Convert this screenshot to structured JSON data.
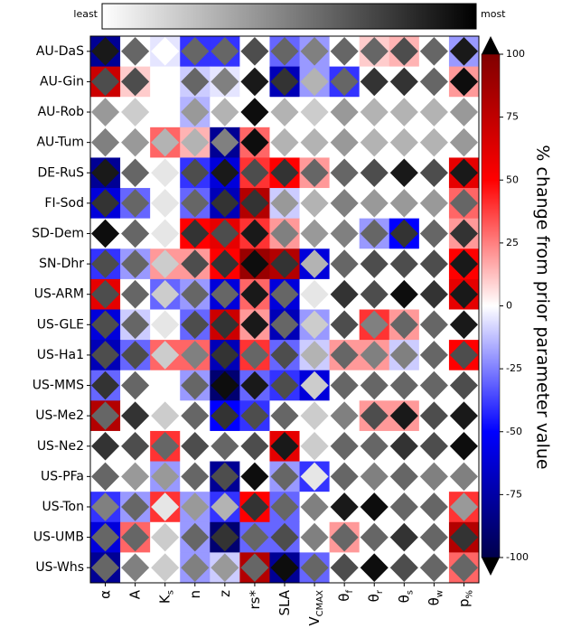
{
  "chart_data": {
    "type": "heatmap",
    "diamond_scale": [
      "least",
      "most"
    ],
    "colorbar_label": "% change from prior parameter value",
    "clim": [
      -100,
      100
    ],
    "cticks": [
      -100,
      -75,
      -50,
      -25,
      0,
      25,
      50,
      75,
      100
    ],
    "rows": [
      "AU-DaS",
      "AU-Gin",
      "AU-Rob",
      "AU-Tum",
      "DE-RuS",
      "FI-Sod",
      "SD-Dem",
      "SN-Dhr",
      "US-ARM",
      "US-GLE",
      "US-Ha1",
      "US-MMS",
      "US-Me2",
      "US-Ne2",
      "US-PFa",
      "US-Ton",
      "US-UMB",
      "US-Whs"
    ],
    "columns": [
      {
        "text": "α"
      },
      {
        "text": "A"
      },
      {
        "text": "K",
        "sub": "s"
      },
      {
        "text": "n"
      },
      {
        "text": "z"
      },
      {
        "text": "rs*"
      },
      {
        "text": "SLA"
      },
      {
        "text": "V",
        "sub": "CMAX"
      },
      {
        "text": "θ",
        "sub": "f"
      },
      {
        "text": "θ",
        "sub": "r"
      },
      {
        "text": "θ",
        "sub": "s"
      },
      {
        "text": "θ",
        "sub": "w"
      },
      {
        "text": "p",
        "sub": "%"
      }
    ],
    "values": [
      [
        -80,
        0,
        -5,
        -40,
        -40,
        0,
        -30,
        -20,
        0,
        10,
        15,
        0,
        -20
      ],
      [
        70,
        10,
        0,
        -10,
        -5,
        0,
        -70,
        -20,
        -40,
        0,
        0,
        0,
        20
      ],
      [
        0,
        0,
        0,
        -15,
        0,
        0,
        0,
        0,
        0,
        0,
        0,
        0,
        0
      ],
      [
        0,
        0,
        30,
        15,
        -80,
        30,
        0,
        0,
        0,
        0,
        0,
        0,
        0
      ],
      [
        -80,
        0,
        0,
        -40,
        -60,
        40,
        50,
        20,
        0,
        0,
        0,
        0,
        60
      ],
      [
        -60,
        -30,
        0,
        -30,
        -70,
        80,
        -10,
        0,
        0,
        0,
        0,
        0,
        30
      ],
      [
        0,
        0,
        0,
        50,
        60,
        40,
        20,
        0,
        0,
        -20,
        -50,
        0,
        20
      ],
      [
        -40,
        -20,
        20,
        20,
        50,
        90,
        80,
        -60,
        0,
        0,
        0,
        0,
        50
      ],
      [
        60,
        0,
        -30,
        -20,
        -60,
        30,
        -60,
        0,
        0,
        0,
        0,
        0,
        60
      ],
      [
        -60,
        -10,
        0,
        -30,
        70,
        20,
        -70,
        -20,
        0,
        40,
        20,
        0,
        0
      ],
      [
        -70,
        -30,
        30,
        30,
        -70,
        40,
        -30,
        -10,
        20,
        20,
        -10,
        0,
        50
      ],
      [
        -30,
        0,
        0,
        -20,
        -90,
        -30,
        -40,
        -60,
        0,
        0,
        0,
        0,
        0
      ],
      [
        80,
        0,
        0,
        0,
        -50,
        -40,
        0,
        0,
        0,
        20,
        20,
        0,
        0
      ],
      [
        0,
        0,
        40,
        0,
        0,
        0,
        60,
        0,
        0,
        0,
        0,
        0,
        0
      ],
      [
        0,
        0,
        -20,
        0,
        -80,
        0,
        -20,
        -40,
        0,
        0,
        0,
        0,
        0
      ],
      [
        -40,
        -20,
        40,
        -20,
        -40,
        50,
        -30,
        0,
        0,
        0,
        0,
        0,
        40
      ],
      [
        -60,
        30,
        0,
        -20,
        -90,
        -30,
        -30,
        0,
        20,
        0,
        0,
        0,
        80
      ],
      [
        -80,
        0,
        0,
        -20,
        -10,
        80,
        -80,
        -30,
        0,
        0,
        0,
        0,
        30
      ]
    ],
    "diamonds": [
      [
        0.9,
        0.6,
        0.0,
        0.6,
        0.6,
        0.7,
        0.6,
        0.5,
        0.6,
        0.6,
        0.7,
        0.6,
        0.9
      ],
      [
        0.7,
        0.7,
        0.0,
        0.6,
        0.5,
        0.9,
        0.8,
        0.3,
        0.6,
        0.8,
        0.8,
        0.6,
        0.95
      ],
      [
        0.4,
        0.2,
        0.0,
        0.4,
        0.3,
        0.95,
        0.3,
        0.2,
        0.4,
        0.3,
        0.3,
        0.3,
        0.4
      ],
      [
        0.5,
        0.4,
        0.3,
        0.3,
        0.5,
        0.95,
        0.3,
        0.3,
        0.4,
        0.3,
        0.3,
        0.3,
        0.4
      ],
      [
        0.9,
        0.6,
        0.1,
        0.7,
        0.9,
        0.7,
        0.8,
        0.6,
        0.6,
        0.7,
        0.9,
        0.7,
        0.9
      ],
      [
        0.8,
        0.6,
        0.1,
        0.6,
        0.8,
        0.8,
        0.4,
        0.3,
        0.5,
        0.4,
        0.4,
        0.4,
        0.6
      ],
      [
        0.95,
        0.6,
        0.1,
        0.8,
        0.7,
        0.9,
        0.5,
        0.4,
        0.5,
        0.6,
        0.8,
        0.6,
        0.8
      ],
      [
        0.7,
        0.6,
        0.2,
        0.7,
        0.8,
        0.95,
        0.8,
        0.3,
        0.6,
        0.7,
        0.7,
        0.7,
        0.9
      ],
      [
        0.7,
        0.6,
        0.2,
        0.6,
        0.6,
        0.9,
        0.6,
        0.1,
        0.8,
        0.7,
        0.95,
        0.8,
        0.9
      ],
      [
        0.7,
        0.6,
        0.1,
        0.7,
        0.8,
        0.9,
        0.6,
        0.2,
        0.7,
        0.5,
        0.6,
        0.6,
        0.9
      ],
      [
        0.7,
        0.7,
        0.2,
        0.5,
        0.8,
        0.6,
        0.7,
        0.3,
        0.6,
        0.5,
        0.5,
        0.6,
        0.7
      ],
      [
        0.8,
        0.6,
        0.0,
        0.6,
        0.95,
        0.9,
        0.7,
        0.2,
        0.6,
        0.6,
        0.6,
        0.6,
        0.7
      ],
      [
        0.6,
        0.8,
        0.2,
        0.6,
        0.8,
        0.7,
        0.6,
        0.2,
        0.5,
        0.7,
        0.9,
        0.7,
        0.9
      ],
      [
        0.8,
        0.7,
        0.6,
        0.7,
        0.6,
        0.7,
        0.9,
        0.2,
        0.6,
        0.6,
        0.8,
        0.7,
        0.95
      ],
      [
        0.6,
        0.4,
        0.4,
        0.6,
        0.7,
        0.95,
        0.6,
        0.1,
        0.6,
        0.5,
        0.6,
        0.5,
        0.5
      ],
      [
        0.5,
        0.6,
        0.1,
        0.4,
        0.3,
        0.8,
        0.6,
        0.5,
        0.9,
        0.95,
        0.6,
        0.6,
        0.4
      ],
      [
        0.6,
        0.6,
        0.2,
        0.6,
        0.8,
        0.6,
        0.7,
        0.5,
        0.6,
        0.6,
        0.8,
        0.6,
        0.8
      ],
      [
        0.6,
        0.5,
        0.2,
        0.5,
        0.4,
        0.6,
        0.95,
        0.6,
        0.7,
        0.95,
        0.7,
        0.6,
        0.6
      ]
    ]
  }
}
